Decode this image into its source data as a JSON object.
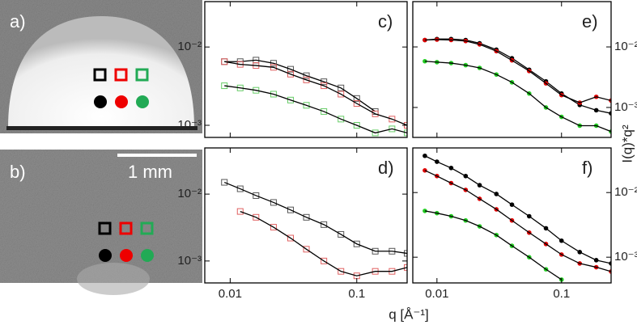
{
  "images": [
    {
      "label": "a)"
    },
    {
      "label": "b)",
      "scale_bar": "1 mm"
    }
  ],
  "xlabel": "q [Å⁻¹]",
  "ylabel": "I(q)*q²",
  "chart_data": [
    {
      "type": "scatter",
      "label": "c)",
      "log_x": true,
      "log_y": true,
      "marker": "open-square",
      "yaxis_side": "left",
      "xlim": [
        0.0063,
        0.25
      ],
      "xticks": [
        0.01,
        0.1
      ],
      "ylim": [
        0.0007,
        0.038
      ],
      "yticks": [
        {
          "value": 0.01,
          "label": "10⁻²"
        },
        {
          "value": 0.001,
          "label": "10⁻³"
        }
      ],
      "x": [
        0.009,
        0.012,
        0.016,
        0.022,
        0.03,
        0.04,
        0.055,
        0.075,
        0.1,
        0.14,
        0.19,
        0.25
      ],
      "series": [
        {
          "color": "#555555",
          "line": true,
          "values": [
            0.0065,
            0.0065,
            0.0068,
            0.0062,
            0.0052,
            0.0043,
            0.0036,
            0.003,
            0.0022,
            0.0015,
            null,
            null
          ]
        },
        {
          "color": "#e06060",
          "line": true,
          "values": [
            0.0065,
            0.006,
            0.0058,
            0.0055,
            0.0045,
            0.0038,
            0.0032,
            0.0025,
            0.0019,
            0.0014,
            0.0012,
            0.001
          ]
        },
        {
          "color": "#66cc66",
          "line": true,
          "values": [
            0.0032,
            0.003,
            0.0028,
            0.0025,
            0.0021,
            0.0018,
            0.0015,
            0.0012,
            0.001,
            0.0008,
            0.0009,
            0.0008
          ]
        }
      ]
    },
    {
      "type": "scatter",
      "label": "e)",
      "log_x": true,
      "log_y": true,
      "marker": "circle",
      "yaxis_side": "right",
      "xlim": [
        0.0064,
        0.25
      ],
      "xticks": [
        0.01,
        0.1
      ],
      "ylim": [
        0.00032,
        0.056
      ],
      "yticks": [
        {
          "value": 0.01,
          "label": "10⁻²"
        },
        {
          "value": 0.001,
          "label": "10⁻³"
        }
      ],
      "x": [
        0.008,
        0.01,
        0.013,
        0.017,
        0.022,
        0.03,
        0.04,
        0.055,
        0.075,
        0.1,
        0.14,
        0.19,
        0.25
      ],
      "series": [
        {
          "color": "#000000",
          "line": true,
          "values": [
            0.013,
            0.0135,
            0.0135,
            0.013,
            0.0115,
            0.009,
            0.0065,
            0.0042,
            0.0027,
            0.0017,
            0.0011,
            0.0009,
            0.0008
          ]
        },
        {
          "color": "#e00000",
          "line": true,
          "values": [
            0.013,
            0.0132,
            0.013,
            0.0125,
            0.011,
            0.0085,
            0.006,
            0.004,
            0.0025,
            0.0016,
            0.0012,
            0.0015,
            0.0013
          ]
        },
        {
          "color": "#22cc22",
          "line": true,
          "values": [
            0.0058,
            0.0056,
            0.0054,
            0.005,
            0.0045,
            0.0035,
            0.0026,
            0.0017,
            0.001,
            0.0007,
            0.0005,
            0.0005,
            0.0004
          ]
        }
      ]
    },
    {
      "type": "scatter",
      "label": "d)",
      "log_x": true,
      "log_y": true,
      "marker": "open-square",
      "yaxis_side": "left",
      "xlim": [
        0.0063,
        0.25
      ],
      "xticks": [
        0.01,
        0.1
      ],
      "ylim": [
        0.00047,
        0.049
      ],
      "yticks": [
        {
          "value": 0.01,
          "label": "10⁻²"
        },
        {
          "value": 0.001,
          "label": "10⁻³"
        }
      ],
      "x": [
        0.009,
        0.012,
        0.016,
        0.022,
        0.03,
        0.04,
        0.055,
        0.075,
        0.1,
        0.14,
        0.19,
        0.25
      ],
      "series": [
        {
          "color": "#555555",
          "line": true,
          "values": [
            0.015,
            0.012,
            0.0095,
            0.0075,
            0.0058,
            0.0045,
            0.0035,
            0.0025,
            0.0018,
            0.0014,
            0.0014,
            0.0013
          ]
        },
        {
          "color": "#e06060",
          "line": true,
          "values": [
            null,
            0.0055,
            0.0045,
            0.0032,
            0.0022,
            0.0015,
            0.001,
            0.0007,
            0.0006,
            0.0007,
            0.0007,
            0.0008
          ]
        }
      ]
    },
    {
      "type": "scatter",
      "label": "f)",
      "log_x": true,
      "log_y": true,
      "marker": "circle",
      "yaxis_side": "right",
      "xlim": [
        0.0064,
        0.25
      ],
      "xticks": [
        0.01,
        0.1
      ],
      "ylim": [
        0.0004,
        0.049
      ],
      "yticks": [
        {
          "value": 0.01,
          "label": "10⁻²"
        },
        {
          "value": 0.001,
          "label": "10⁻³"
        }
      ],
      "x": [
        0.008,
        0.01,
        0.013,
        0.017,
        0.022,
        0.03,
        0.04,
        0.055,
        0.075,
        0.1,
        0.14,
        0.19,
        0.25
      ],
      "series": [
        {
          "color": "#000000",
          "line": true,
          "values": [
            0.037,
            0.03,
            0.024,
            0.018,
            0.013,
            0.0095,
            0.0065,
            0.0043,
            0.0028,
            0.0018,
            0.0012,
            0.0009,
            0.0008
          ]
        },
        {
          "color": "#e00000",
          "line": true,
          "values": [
            0.022,
            0.018,
            0.014,
            0.011,
            0.008,
            0.0055,
            0.0037,
            0.0024,
            0.0016,
            0.0011,
            0.0008,
            0.0007,
            0.0006
          ]
        },
        {
          "color": "#22cc22",
          "line": true,
          "values": [
            0.0052,
            0.0048,
            0.0043,
            0.0037,
            0.003,
            0.0022,
            0.0015,
            0.001,
            0.00065,
            0.00045,
            null,
            null,
            null
          ]
        }
      ]
    }
  ]
}
